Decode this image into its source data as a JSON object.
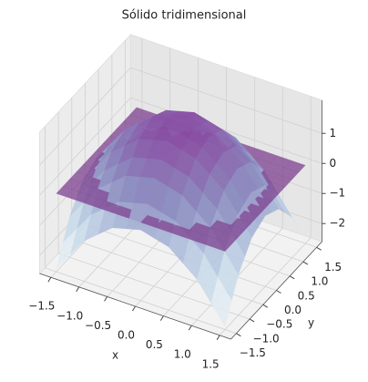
{
  "chart_data": {
    "type": "surface",
    "title": "Sólido tridimensional",
    "xlabel": "x",
    "ylabel": "y",
    "xlim": [
      -1.7,
      1.7
    ],
    "ylim": [
      -1.7,
      1.7
    ],
    "zlim": [
      -2.6,
      2.1
    ],
    "xticks": [
      {
        "value": -1.5,
        "label": "−1.5"
      },
      {
        "value": -1,
        "label": "−1.0"
      },
      {
        "value": -0.5,
        "label": "−0.5"
      },
      {
        "value": 0,
        "label": "0.0"
      },
      {
        "value": 0.5,
        "label": "0.5"
      },
      {
        "value": 1,
        "label": "1.0"
      },
      {
        "value": 1.5,
        "label": "1.5"
      }
    ],
    "yticks": [
      {
        "value": -1.5,
        "label": "−1.5"
      },
      {
        "value": -1,
        "label": "−1.0"
      },
      {
        "value": -0.5,
        "label": "−0.5"
      },
      {
        "value": 0,
        "label": "0.0"
      },
      {
        "value": 0.5,
        "label": "0.5"
      },
      {
        "value": 1,
        "label": "1.0"
      },
      {
        "value": 1.5,
        "label": "1.5"
      }
    ],
    "zticks": [
      {
        "value": -2,
        "label": "−2"
      },
      {
        "value": -1,
        "label": "−1"
      },
      0,
      1
    ],
    "grid": true,
    "surfaces": [
      {
        "x": [
          -1.5,
          -1,
          -0.5,
          0,
          0.5,
          1,
          1.5
        ],
        "y": [
          -1.5,
          -1,
          -0.5,
          0,
          0.5,
          1,
          1.5
        ],
        "z": [
          [
            -2.5,
            -1.25,
            -0.5,
            -0.25,
            -0.5,
            -1.25,
            -2.5
          ],
          [
            -1.25,
            0,
            0.75,
            1,
            0.75,
            0,
            -1.25
          ],
          [
            -0.5,
            0.75,
            1.5,
            1.75,
            1.5,
            0.75,
            -0.5
          ],
          [
            -0.25,
            1,
            1.75,
            2,
            1.75,
            1,
            -0.25
          ],
          [
            -0.5,
            0.75,
            1.5,
            1.75,
            1.5,
            0.75,
            -0.5
          ],
          [
            -1.25,
            0,
            0.75,
            1,
            0.75,
            0,
            -1.25
          ],
          [
            -2.5,
            -1.25,
            -0.5,
            -0.25,
            -0.5,
            -1.25,
            -2.5
          ]
        ],
        "colormap": [
          "#f7fcfd",
          "#bfd3e6",
          "#8c96c6",
          "#88419d"
        ],
        "alpha": 0.85
      },
      {
        "x": [
          -1.5,
          1.5
        ],
        "y": [
          -1.5,
          1.5
        ],
        "z": [
          [
            0,
            0
          ],
          [
            0,
            0
          ]
        ],
        "color": "#7a3a8c",
        "alpha": 0.72
      }
    ]
  }
}
